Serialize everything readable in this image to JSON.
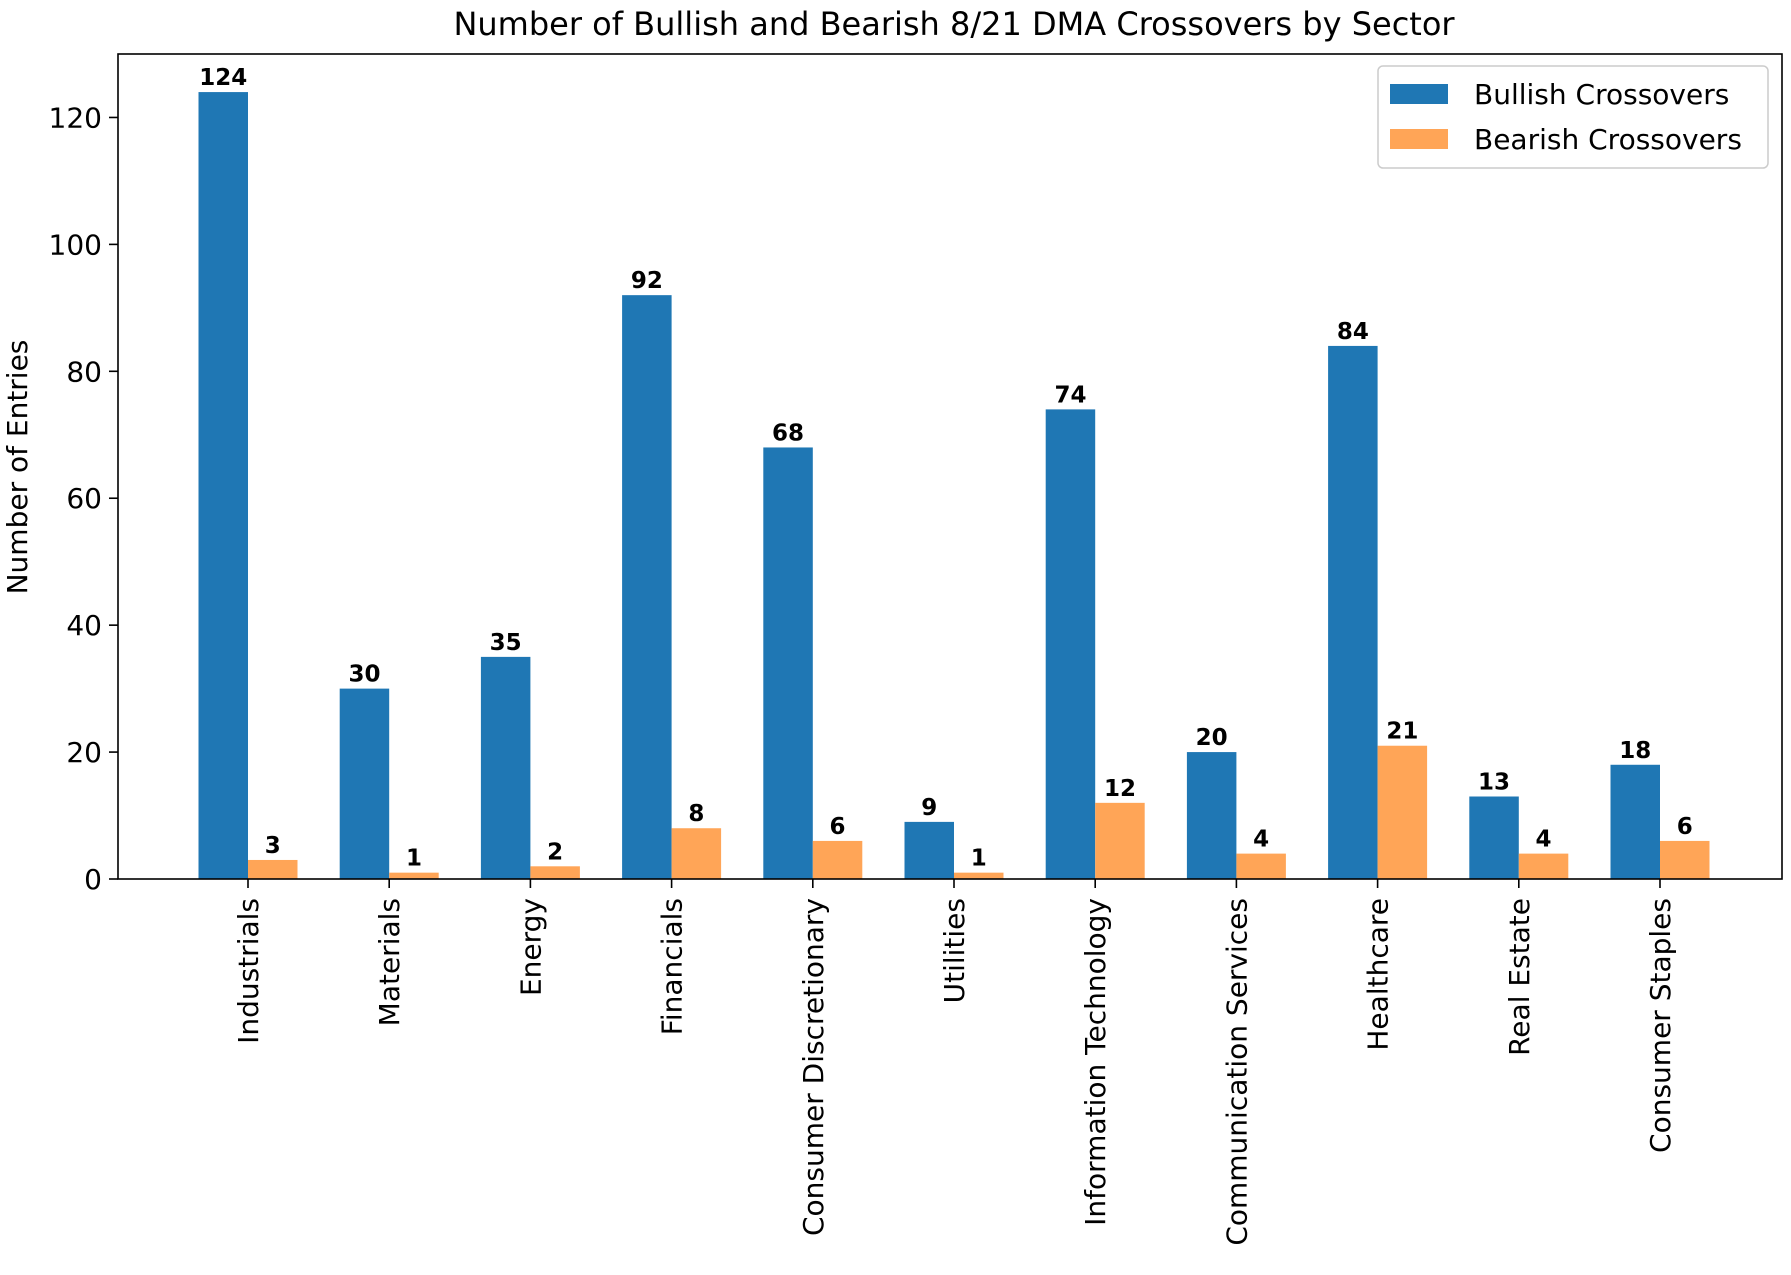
{
  "chart_data": {
    "type": "bar",
    "title": "Number of Bullish and Bearish 8/21 DMA Crossovers by Sector",
    "xlabel": "",
    "ylabel": "Number of Entries",
    "ylim": [
      0,
      130
    ],
    "yticks": [
      0,
      20,
      40,
      60,
      80,
      100,
      120
    ],
    "grid": false,
    "legend_position": "top-right",
    "categories": [
      "Industrials",
      "Materials",
      "Energy",
      "Financials",
      "Consumer Discretionary",
      "Utilities",
      "Information Technology",
      "Communication Services",
      "Healthcare",
      "Real Estate",
      "Consumer Staples"
    ],
    "series": [
      {
        "name": "Bullish Crossovers",
        "color": "#1f77b4",
        "values": [
          124,
          30,
          35,
          92,
          68,
          9,
          74,
          20,
          84,
          13,
          18
        ]
      },
      {
        "name": "Bearish Crossovers",
        "color": "#ffa557",
        "values": [
          3,
          1,
          2,
          8,
          6,
          1,
          12,
          4,
          21,
          4,
          6
        ]
      }
    ]
  }
}
